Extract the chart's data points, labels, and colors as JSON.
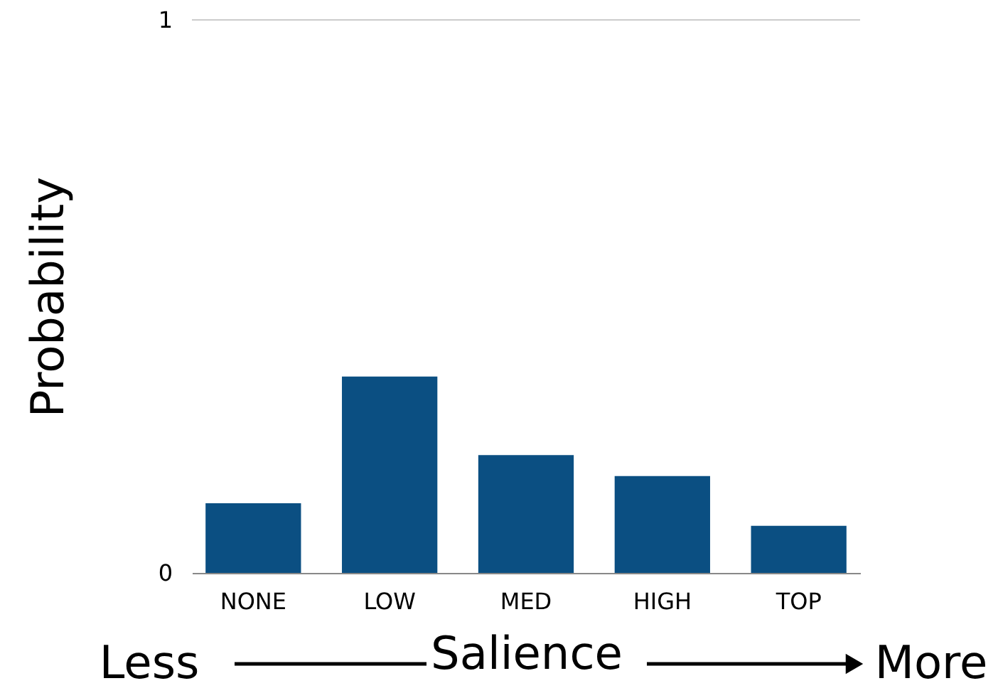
{
  "chart_data": {
    "type": "bar",
    "categories": [
      "NONE",
      "LOW",
      "MED",
      "HIGH",
      "TOP"
    ],
    "values": [
      0.126,
      0.355,
      0.213,
      0.175,
      0.085
    ],
    "color": "#0b4f82",
    "ylim": [
      0,
      1
    ],
    "yticks": [
      0,
      1
    ],
    "ylabel": "Probability",
    "xlabel": "Salience",
    "annotations": [
      "Less",
      "More"
    ]
  }
}
